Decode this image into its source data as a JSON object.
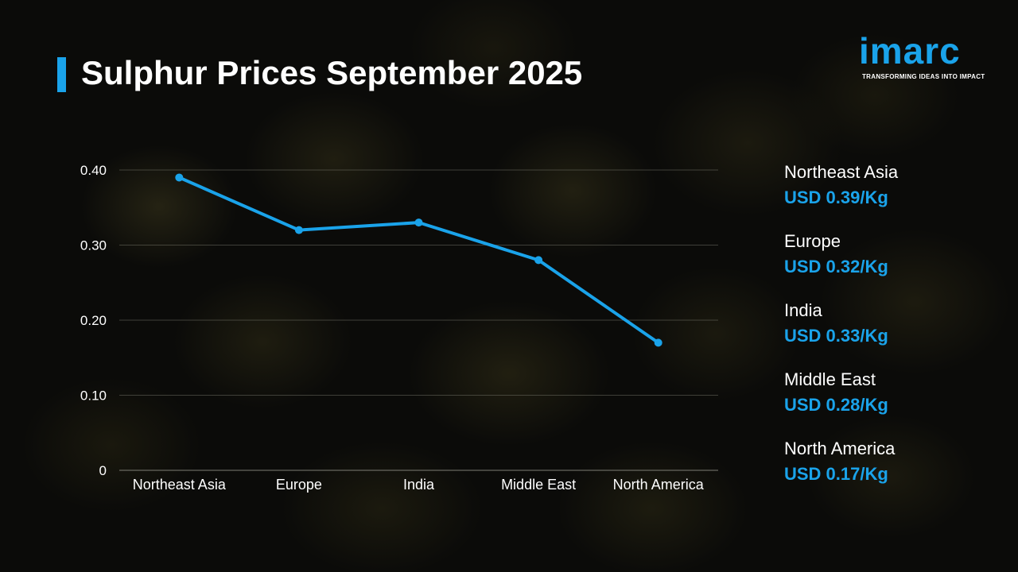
{
  "title": "Sulphur Prices September 2025",
  "logo": {
    "wordmark": "imarc",
    "tagline": "TRANSFORMING IDEAS INTO IMPACT"
  },
  "colors": {
    "accent": "#1aa3ea",
    "text": "#ffffff",
    "grid": "#6b6b60"
  },
  "chart_data": {
    "type": "line",
    "title": "",
    "xlabel": "",
    "ylabel": "",
    "categories": [
      "Northeast Asia",
      "Europe",
      "India",
      "Middle East",
      "North America"
    ],
    "series": [
      {
        "values": [
          0.39,
          0.32,
          0.33,
          0.28,
          0.17
        ]
      }
    ],
    "ylim": [
      0,
      0.4
    ],
    "yticks": [
      0,
      0.1,
      0.2,
      0.3,
      0.4
    ],
    "ytick_labels": [
      "0",
      "0.10",
      "0.20",
      "0.30",
      "0.40"
    ],
    "grid": true,
    "legend": "none"
  },
  "price_list": [
    {
      "region": "Northeast Asia",
      "price": "USD 0.39/Kg"
    },
    {
      "region": "Europe",
      "price": "USD 0.32/Kg"
    },
    {
      "region": "India",
      "price": "USD 0.33/Kg"
    },
    {
      "region": "Middle East",
      "price": "USD 0.28/Kg"
    },
    {
      "region": "North America",
      "price": "USD 0.17/Kg"
    }
  ]
}
